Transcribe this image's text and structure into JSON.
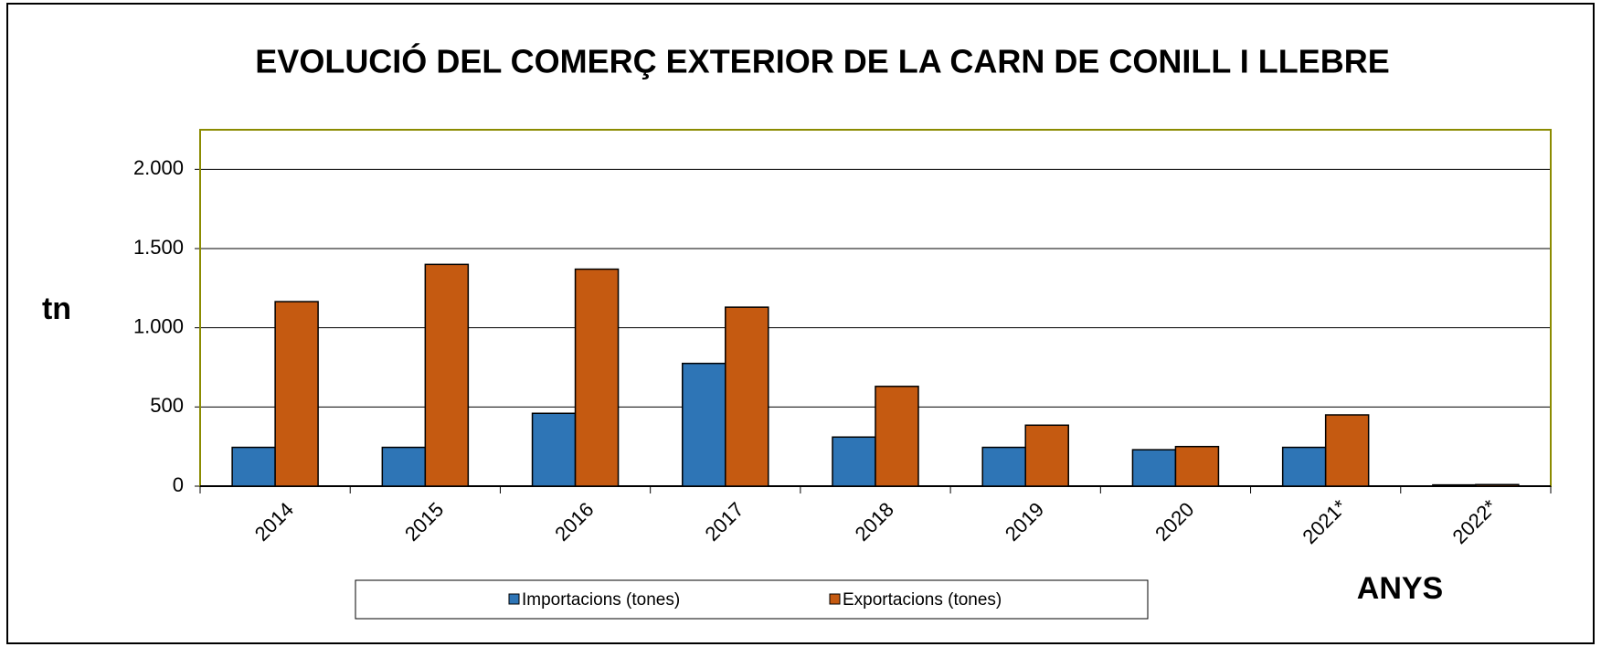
{
  "chart_data": {
    "type": "bar",
    "title": "EVOLUCIÓ DEL COMERÇ EXTERIOR DE LA CARN DE CONILL I LLEBRE",
    "y_label": "tn",
    "x_label": "ANYS",
    "categories": [
      "2014",
      "2015",
      "2016",
      "2017",
      "2018",
      "2019",
      "2020",
      "2021*",
      "2022*"
    ],
    "series": [
      {
        "name": "Importacions (tones)",
        "color": "#2e75b6",
        "values": [
          245,
          245,
          460,
          775,
          310,
          245,
          230,
          245,
          8
        ]
      },
      {
        "name": "Exportacions (tones)",
        "color": "#c55a11",
        "values": [
          1165,
          1400,
          1370,
          1130,
          630,
          385,
          250,
          450,
          10
        ]
      }
    ],
    "ylim": [
      0,
      2250
    ],
    "yticks": [
      0,
      500,
      {
        "value": 1000,
        "label": "1.000"
      },
      {
        "value": 1500,
        "label": "1.500"
      },
      {
        "value": 2000,
        "label": "2.000"
      }
    ],
    "grid": true
  }
}
